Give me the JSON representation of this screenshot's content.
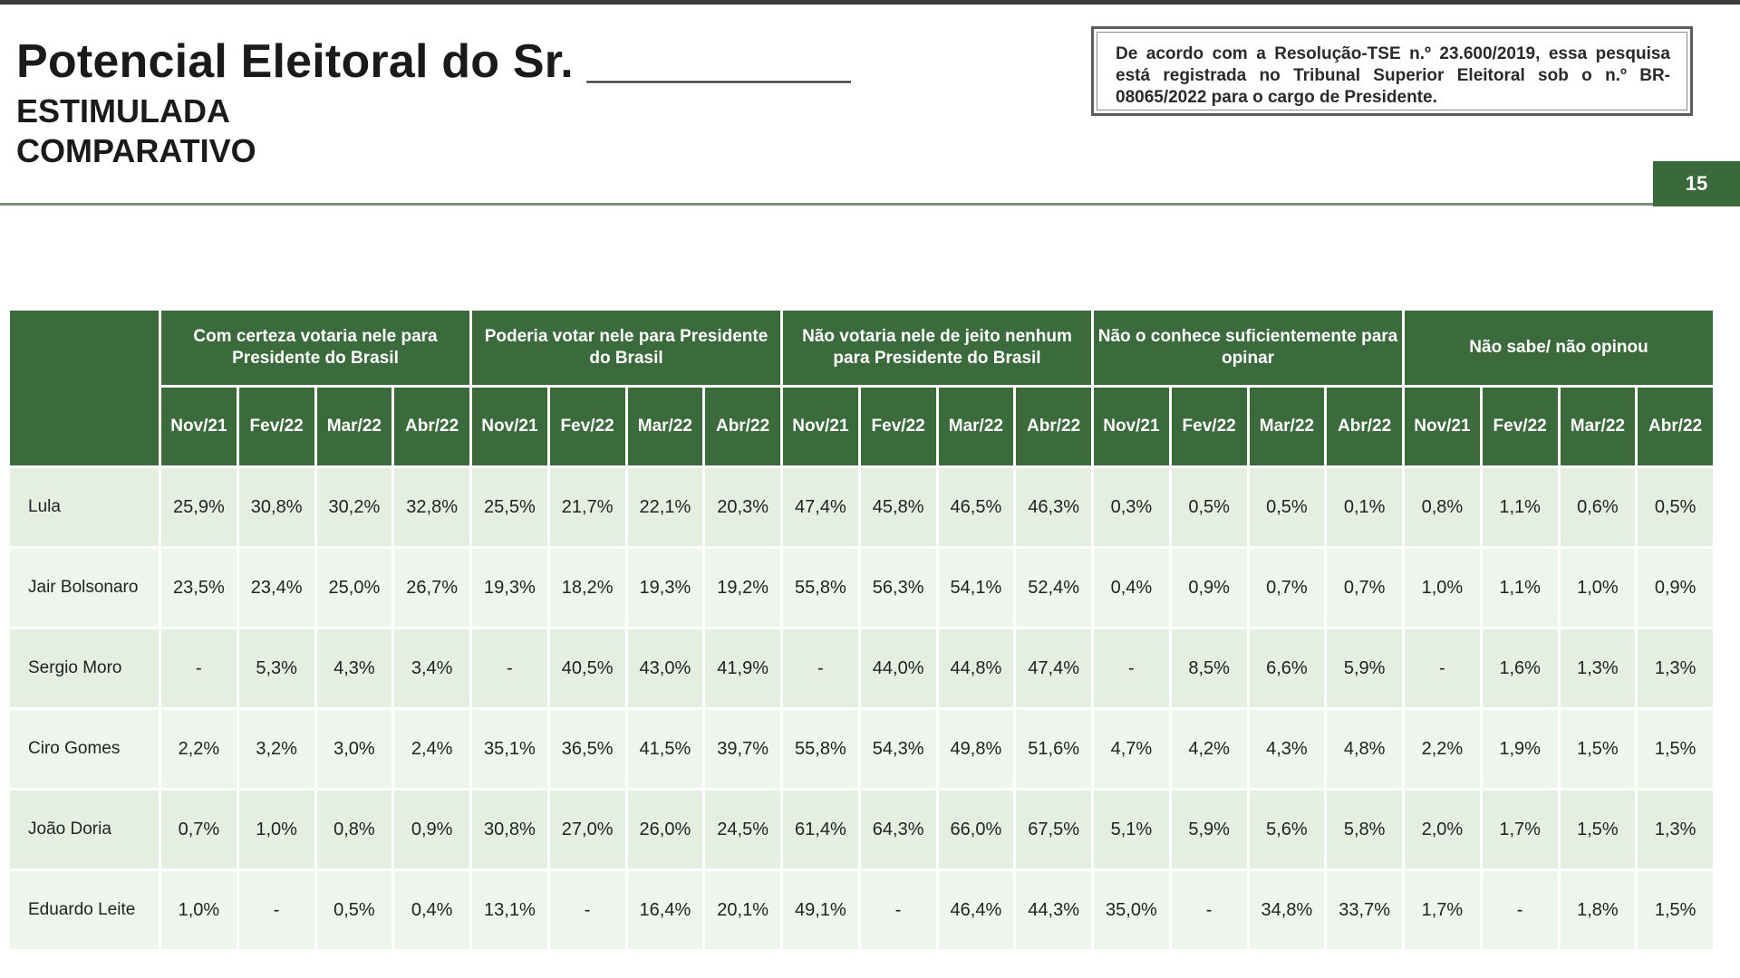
{
  "header": {
    "title": "Potencial Eleitoral do Sr. __________",
    "subtitle_1": "ESTIMULADA",
    "subtitle_2": "COMPARATIVO",
    "notice": "De acordo com a Resolução-TSE n.º 23.600/2019, essa pesquisa está registrada no Tribunal Superior Eleitoral sob o n.º BR-08065/2022 para o cargo de Presidente.",
    "page_number": "15"
  },
  "table": {
    "groups": [
      "Com certeza votaria nele para Presidente do Brasil",
      "Poderia votar nele para Presidente do Brasil",
      "Não votaria nele de jeito nenhum para Presidente do Brasil",
      "Não o conhece  suficientemente para opinar",
      "Não sabe/ não opinou"
    ],
    "periods": [
      "Nov/21",
      "Fev/22",
      "Mar/22",
      "Abr/22"
    ],
    "rows": [
      {
        "candidate": "Lula",
        "values": [
          "25,9%",
          "30,8%",
          "30,2%",
          "32,8%",
          "25,5%",
          "21,7%",
          "22,1%",
          "20,3%",
          "47,4%",
          "45,8%",
          "46,5%",
          "46,3%",
          "0,3%",
          "0,5%",
          "0,5%",
          "0,1%",
          "0,8%",
          "1,1%",
          "0,6%",
          "0,5%"
        ]
      },
      {
        "candidate": "Jair Bolsonaro",
        "values": [
          "23,5%",
          "23,4%",
          "25,0%",
          "26,7%",
          "19,3%",
          "18,2%",
          "19,3%",
          "19,2%",
          "55,8%",
          "56,3%",
          "54,1%",
          "52,4%",
          "0,4%",
          "0,9%",
          "0,7%",
          "0,7%",
          "1,0%",
          "1,1%",
          "1,0%",
          "0,9%"
        ]
      },
      {
        "candidate": "Sergio Moro",
        "values": [
          "-",
          "5,3%",
          "4,3%",
          "3,4%",
          "-",
          "40,5%",
          "43,0%",
          "41,9%",
          "-",
          "44,0%",
          "44,8%",
          "47,4%",
          "-",
          "8,5%",
          "6,6%",
          "5,9%",
          "-",
          "1,6%",
          "1,3%",
          "1,3%"
        ]
      },
      {
        "candidate": "Ciro Gomes",
        "values": [
          "2,2%",
          "3,2%",
          "3,0%",
          "2,4%",
          "35,1%",
          "36,5%",
          "41,5%",
          "39,7%",
          "55,8%",
          "54,3%",
          "49,8%",
          "51,6%",
          "4,7%",
          "4,2%",
          "4,3%",
          "4,8%",
          "2,2%",
          "1,9%",
          "1,5%",
          "1,5%"
        ]
      },
      {
        "candidate": "João Doria",
        "values": [
          "0,7%",
          "1,0%",
          "0,8%",
          "0,9%",
          "30,8%",
          "27,0%",
          "26,0%",
          "24,5%",
          "61,4%",
          "64,3%",
          "66,0%",
          "67,5%",
          "5,1%",
          "5,9%",
          "5,6%",
          "5,8%",
          "2,0%",
          "1,7%",
          "1,5%",
          "1,3%"
        ]
      },
      {
        "candidate": "Eduardo Leite",
        "values": [
          "1,0%",
          "-",
          "0,5%",
          "0,4%",
          "13,1%",
          "-",
          "16,4%",
          "20,1%",
          "49,1%",
          "-",
          "46,4%",
          "44,3%",
          "35,0%",
          "-",
          "34,8%",
          "33,7%",
          "1,7%",
          "-",
          "1,8%",
          "1,5%"
        ]
      }
    ]
  },
  "colors": {
    "header_green": "#3b6b3d",
    "row_light": "#e4efe2",
    "page_tab": "#3a6a3c"
  }
}
